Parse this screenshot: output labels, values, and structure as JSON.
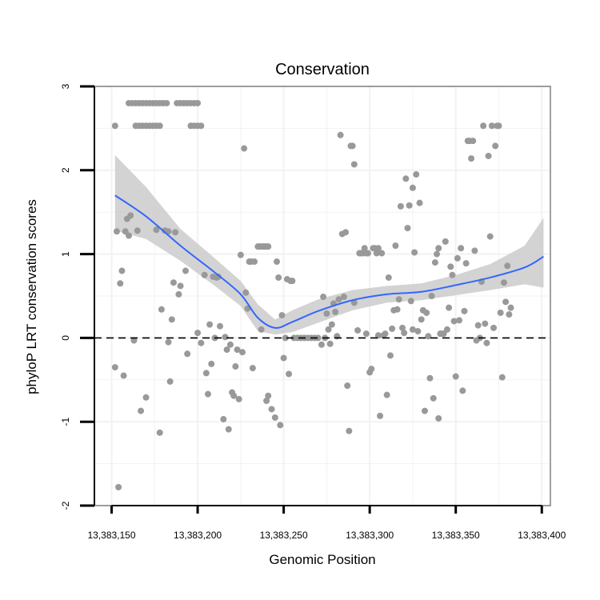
{
  "chart_data": {
    "type": "scatter",
    "title": "Conservation",
    "xlabel": "Genomic Position",
    "ylabel": "phyloP LRT conservation scores",
    "xlim": [
      13383140,
      13383405
    ],
    "ylim": [
      -2,
      3
    ],
    "x_ticks": [
      13383150,
      13383200,
      13383250,
      13383300,
      13383350,
      13383400
    ],
    "x_tick_labels": [
      "13,383,150",
      "13,383,200",
      "13,383,250",
      "13,383,300",
      "13,383,350",
      "13,383,400"
    ],
    "y_ticks": [
      -2,
      -1,
      0,
      1,
      2,
      3
    ],
    "y_tick_labels": [
      "-2",
      "-1",
      "0",
      "1",
      "2",
      "3"
    ],
    "reference_line": {
      "y": 0,
      "style": "dashed"
    },
    "colors": {
      "points": "#999999",
      "smooth": "#3366ff",
      "band": "#c8c8c8",
      "panel_border": "#808080",
      "grid": "#f2f2f2"
    },
    "series": [
      {
        "name": "scores",
        "points": [
          [
            13383152,
            2.53
          ],
          [
            13383153,
            1.27
          ],
          [
            13383155,
            0.65
          ],
          [
            13383156,
            0.8
          ],
          [
            13383154,
            -1.78
          ],
          [
            13383152,
            -0.35
          ],
          [
            13383157,
            -0.45
          ],
          [
            13383158,
            1.27
          ],
          [
            13383159,
            1.42
          ],
          [
            13383160,
            1.22
          ],
          [
            13383161,
            1.46
          ],
          [
            13383163,
            -0.03
          ],
          [
            13383165,
            1.28
          ],
          [
            13383167,
            -0.87
          ],
          [
            13383170,
            -0.71
          ],
          [
            13383176,
            1.29
          ],
          [
            13383178,
            -1.13
          ],
          [
            13383179,
            0.34
          ],
          [
            13383181,
            1.28
          ],
          [
            13383183,
            1.27
          ],
          [
            13383183,
            -0.05
          ],
          [
            13383184,
            -0.52
          ],
          [
            13383185,
            0.22
          ],
          [
            13383186,
            0.66
          ],
          [
            13383187,
            1.26
          ],
          [
            13383189,
            0.52
          ],
          [
            13383190,
            0.62
          ],
          [
            13383193,
            0.8
          ],
          [
            13383194,
            -0.19
          ],
          [
            13383200,
            0.06
          ],
          [
            13383202,
            -0.06
          ],
          [
            13383204,
            0.75
          ],
          [
            13383205,
            -0.42
          ],
          [
            13383206,
            -0.67
          ],
          [
            13383207,
            0.16
          ],
          [
            13383208,
            -0.31
          ],
          [
            13383209,
            0.73
          ],
          [
            13383210,
            0.0
          ],
          [
            13383211,
            0.72
          ],
          [
            13383212,
            0.73
          ],
          [
            13383213,
            0.14
          ],
          [
            13383215,
            -0.97
          ],
          [
            13383216,
            0.01
          ],
          [
            13383217,
            -0.14
          ],
          [
            13383218,
            -1.09
          ],
          [
            13383219,
            -0.08
          ],
          [
            13383220,
            -0.65
          ],
          [
            13383221,
            -0.69
          ],
          [
            13383222,
            -0.34
          ],
          [
            13383223,
            -0.14
          ],
          [
            13383224,
            -0.73
          ],
          [
            13383225,
            0.99
          ],
          [
            13383226,
            -0.17
          ],
          [
            13383227,
            2.26
          ],
          [
            13383228,
            0.54
          ],
          [
            13383229,
            0.35
          ],
          [
            13383230,
            0.91
          ],
          [
            13383231,
            0.91
          ],
          [
            13383232,
            -0.36
          ],
          [
            13383233,
            0.91
          ],
          [
            13383235,
            1.09
          ],
          [
            13383236,
            1.09
          ],
          [
            13383237,
            1.09
          ],
          [
            13383238,
            1.09
          ],
          [
            13383239,
            1.09
          ],
          [
            13383240,
            1.09
          ],
          [
            13383241,
            1.09
          ],
          [
            13383237,
            0.1
          ],
          [
            13383240,
            -0.75
          ],
          [
            13383241,
            -0.69
          ],
          [
            13383243,
            -0.85
          ],
          [
            13383245,
            -0.95
          ],
          [
            13383246,
            0.91
          ],
          [
            13383247,
            0.72
          ],
          [
            13383248,
            -1.04
          ],
          [
            13383249,
            0.27
          ],
          [
            13383250,
            -0.24
          ],
          [
            13383251,
            0.0
          ],
          [
            13383252,
            0.7
          ],
          [
            13383253,
            -0.43
          ],
          [
            13383254,
            0.68
          ],
          [
            13383255,
            0.68
          ],
          [
            13383256,
            0.0
          ],
          [
            13383258,
            0.0
          ],
          [
            13383260,
            0.0
          ],
          [
            13383262,
            0.0
          ],
          [
            13383264,
            0.0
          ],
          [
            13383266,
            0.0
          ],
          [
            13383268,
            0.0
          ],
          [
            13383270,
            0.0
          ],
          [
            13383272,
            -0.08
          ],
          [
            13383273,
            0.49
          ],
          [
            13383274,
            0.0
          ],
          [
            13383275,
            0.29
          ],
          [
            13383276,
            0.1
          ],
          [
            13383277,
            -0.07
          ],
          [
            13383278,
            0.16
          ],
          [
            13383279,
            0.41
          ],
          [
            13383280,
            0.31
          ],
          [
            13383281,
            0.02
          ],
          [
            13383282,
            0.46
          ],
          [
            13383283,
            2.42
          ],
          [
            13383284,
            1.24
          ],
          [
            13383285,
            0.49
          ],
          [
            13383286,
            1.26
          ],
          [
            13383287,
            -0.57
          ],
          [
            13383288,
            -1.11
          ],
          [
            13383289,
            2.29
          ],
          [
            13383290,
            2.29
          ],
          [
            13383291,
            2.07
          ],
          [
            13383291,
            0.42
          ],
          [
            13383293,
            0.09
          ],
          [
            13383294,
            1.01
          ],
          [
            13383295,
            1.01
          ],
          [
            13383296,
            1.01
          ],
          [
            13383297,
            1.07
          ],
          [
            13383298,
            1.01
          ],
          [
            13383298,
            0.05
          ],
          [
            13383299,
            1.01
          ],
          [
            13383300,
            -0.41
          ],
          [
            13383301,
            -0.37
          ],
          [
            13383302,
            1.07
          ],
          [
            13383303,
            1.07
          ],
          [
            13383304,
            1.01
          ],
          [
            13383305,
            1.07
          ],
          [
            13383305,
            0.03
          ],
          [
            13383306,
            -0.93
          ],
          [
            13383307,
            1.01
          ],
          [
            13383308,
            0.03
          ],
          [
            13383309,
            0.05
          ],
          [
            13383310,
            -0.68
          ],
          [
            13383311,
            0.72
          ],
          [
            13383312,
            -0.21
          ],
          [
            13383313,
            0.11
          ],
          [
            13383314,
            0.33
          ],
          [
            13383315,
            1.1
          ],
          [
            13383316,
            0.34
          ],
          [
            13383317,
            0.46
          ],
          [
            13383318,
            1.57
          ],
          [
            13383319,
            0.12
          ],
          [
            13383320,
            0.06
          ],
          [
            13383321,
            1.9
          ],
          [
            13383322,
            1.31
          ],
          [
            13383323,
            1.58
          ],
          [
            13383324,
            0.44
          ],
          [
            13383325,
            1.79
          ],
          [
            13383325,
            0.1
          ],
          [
            13383326,
            1.02
          ],
          [
            13383327,
            1.95
          ],
          [
            13383328,
            0.08
          ],
          [
            13383329,
            1.61
          ],
          [
            13383330,
            0.22
          ],
          [
            13383331,
            0.33
          ],
          [
            13383332,
            -0.87
          ],
          [
            13383333,
            0.3
          ],
          [
            13383334,
            0.02
          ],
          [
            13383335,
            -0.48
          ],
          [
            13383336,
            0.5
          ],
          [
            13383337,
            -0.72
          ],
          [
            13383338,
            0.9
          ],
          [
            13383339,
            1.0
          ],
          [
            13383340,
            1.07
          ],
          [
            13383340,
            -0.96
          ],
          [
            13383341,
            0.05
          ],
          [
            13383342,
            0.05
          ],
          [
            13383343,
            0.05
          ],
          [
            13383344,
            1.15
          ],
          [
            13383345,
            0.1
          ],
          [
            13383346,
            0.36
          ],
          [
            13383347,
            0.85
          ],
          [
            13383348,
            0.75
          ],
          [
            13383349,
            0.2
          ],
          [
            13383350,
            -0.46
          ],
          [
            13383351,
            0.95
          ],
          [
            13383352,
            0.21
          ],
          [
            13383353,
            1.07
          ],
          [
            13383354,
            -0.63
          ],
          [
            13383355,
            0.32
          ],
          [
            13383356,
            0.89
          ],
          [
            13383357,
            2.35
          ],
          [
            13383358,
            2.35
          ],
          [
            13383359,
            2.14
          ],
          [
            13383360,
            2.35
          ],
          [
            13383361,
            1.04
          ],
          [
            13383362,
            -0.03
          ],
          [
            13383363,
            0.15
          ],
          [
            13383364,
            0.0
          ],
          [
            13383365,
            0.67
          ],
          [
            13383366,
            2.53
          ],
          [
            13383367,
            0.17
          ],
          [
            13383368,
            -0.06
          ],
          [
            13383369,
            2.17
          ],
          [
            13383370,
            1.21
          ],
          [
            13383371,
            2.53
          ],
          [
            13383372,
            0.12
          ],
          [
            13383373,
            2.29
          ],
          [
            13383374,
            2.53
          ],
          [
            13383375,
            2.53
          ],
          [
            13383376,
            0.3
          ],
          [
            13383377,
            -0.47
          ],
          [
            13383378,
            0.66
          ],
          [
            13383379,
            0.43
          ],
          [
            13383380,
            0.86
          ],
          [
            13383381,
            0.28
          ],
          [
            13383382,
            0.36
          ],
          [
            13383160,
            2.8
          ],
          [
            13383162,
            2.8
          ],
          [
            13383164,
            2.8
          ],
          [
            13383166,
            2.8
          ],
          [
            13383168,
            2.8
          ],
          [
            13383170,
            2.8
          ],
          [
            13383172,
            2.8
          ],
          [
            13383174,
            2.8
          ],
          [
            13383176,
            2.8
          ],
          [
            13383178,
            2.8
          ],
          [
            13383180,
            2.8
          ],
          [
            13383182,
            2.8
          ],
          [
            13383164,
            2.53
          ],
          [
            13383166,
            2.53
          ],
          [
            13383168,
            2.53
          ],
          [
            13383170,
            2.53
          ],
          [
            13383172,
            2.53
          ],
          [
            13383174,
            2.53
          ],
          [
            13383176,
            2.53
          ],
          [
            13383178,
            2.53
          ],
          [
            13383188,
            2.8
          ],
          [
            13383190,
            2.8
          ],
          [
            13383192,
            2.8
          ],
          [
            13383194,
            2.8
          ],
          [
            13383196,
            2.8
          ],
          [
            13383198,
            2.8
          ],
          [
            13383200,
            2.8
          ],
          [
            13383196,
            2.53
          ],
          [
            13383198,
            2.53
          ],
          [
            13383200,
            2.53
          ],
          [
            13383202,
            2.53
          ]
        ]
      }
    ],
    "smooth": {
      "x": [
        13383152,
        13383170,
        13383190,
        13383210,
        13383225,
        13383235,
        13383245,
        13383255,
        13383270,
        13383290,
        13383310,
        13383330,
        13383350,
        13383370,
        13383390,
        13383401
      ],
      "y": [
        1.7,
        1.45,
        1.1,
        0.78,
        0.52,
        0.24,
        0.12,
        0.19,
        0.32,
        0.45,
        0.52,
        0.55,
        0.63,
        0.72,
        0.84,
        0.97
      ],
      "lower": [
        1.28,
        1.18,
        0.92,
        0.62,
        0.38,
        0.08,
        0.04,
        0.07,
        0.18,
        0.33,
        0.42,
        0.45,
        0.51,
        0.57,
        0.64,
        0.6
      ],
      "upper": [
        2.18,
        1.8,
        1.3,
        0.95,
        0.68,
        0.4,
        0.22,
        0.33,
        0.46,
        0.57,
        0.62,
        0.65,
        0.75,
        0.88,
        1.1,
        1.43
      ]
    }
  }
}
